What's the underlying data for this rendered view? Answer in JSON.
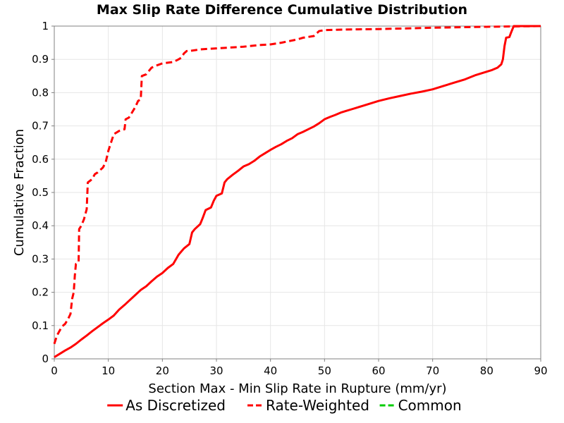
{
  "chart_data": {
    "type": "line",
    "title": "Max Slip Rate Difference Cumulative Distribution",
    "xlabel": "Section Max - Min Slip Rate in Rupture (mm/yr)",
    "ylabel": "Cumulative Fraction",
    "xlim": [
      0,
      90
    ],
    "ylim": [
      0,
      1
    ],
    "x_ticks": [
      0,
      10,
      20,
      30,
      40,
      50,
      60,
      70,
      80,
      90
    ],
    "y_ticks": [
      0,
      0.1,
      0.2,
      0.3,
      0.4,
      0.5,
      0.6,
      0.7,
      0.8,
      0.9,
      1
    ],
    "grid": true,
    "legend_position": "bottom",
    "series": [
      {
        "name": "As Discretized",
        "color": "#ff0000",
        "style": "solid",
        "points": [
          [
            0,
            0.005
          ],
          [
            1,
            0.015
          ],
          [
            2,
            0.025
          ],
          [
            3,
            0.034
          ],
          [
            4,
            0.045
          ],
          [
            5,
            0.058
          ],
          [
            6,
            0.07
          ],
          [
            7,
            0.083
          ],
          [
            8,
            0.095
          ],
          [
            9,
            0.107
          ],
          [
            10,
            0.118
          ],
          [
            11,
            0.13
          ],
          [
            12,
            0.148
          ],
          [
            13,
            0.162
          ],
          [
            14,
            0.177
          ],
          [
            15,
            0.192
          ],
          [
            16,
            0.207
          ],
          [
            17,
            0.218
          ],
          [
            18,
            0.233
          ],
          [
            19,
            0.247
          ],
          [
            20,
            0.258
          ],
          [
            21,
            0.273
          ],
          [
            22,
            0.285
          ],
          [
            23,
            0.313
          ],
          [
            24,
            0.332
          ],
          [
            25,
            0.345
          ],
          [
            25.5,
            0.38
          ],
          [
            26,
            0.39
          ],
          [
            27,
            0.405
          ],
          [
            27.5,
            0.425
          ],
          [
            28,
            0.447
          ],
          [
            29,
            0.455
          ],
          [
            29.5,
            0.475
          ],
          [
            30,
            0.49
          ],
          [
            31,
            0.497
          ],
          [
            31.5,
            0.53
          ],
          [
            32,
            0.54
          ],
          [
            33,
            0.553
          ],
          [
            34,
            0.565
          ],
          [
            35,
            0.578
          ],
          [
            36,
            0.585
          ],
          [
            37,
            0.595
          ],
          [
            38,
            0.608
          ],
          [
            39,
            0.618
          ],
          [
            40,
            0.628
          ],
          [
            41,
            0.637
          ],
          [
            42,
            0.645
          ],
          [
            43,
            0.655
          ],
          [
            44,
            0.663
          ],
          [
            45,
            0.675
          ],
          [
            46,
            0.682
          ],
          [
            47,
            0.69
          ],
          [
            48,
            0.698
          ],
          [
            49,
            0.708
          ],
          [
            50,
            0.72
          ],
          [
            51,
            0.727
          ],
          [
            52,
            0.733
          ],
          [
            53,
            0.74
          ],
          [
            54,
            0.745
          ],
          [
            55,
            0.75
          ],
          [
            56,
            0.755
          ],
          [
            57,
            0.76
          ],
          [
            58,
            0.765
          ],
          [
            59,
            0.77
          ],
          [
            60,
            0.775
          ],
          [
            62,
            0.783
          ],
          [
            64,
            0.79
          ],
          [
            66,
            0.797
          ],
          [
            68,
            0.803
          ],
          [
            70,
            0.81
          ],
          [
            72,
            0.82
          ],
          [
            74,
            0.83
          ],
          [
            76,
            0.84
          ],
          [
            78,
            0.853
          ],
          [
            80,
            0.863
          ],
          [
            81,
            0.868
          ],
          [
            82,
            0.875
          ],
          [
            82.7,
            0.885
          ],
          [
            83,
            0.9
          ],
          [
            83.3,
            0.94
          ],
          [
            83.6,
            0.965
          ],
          [
            84.2,
            0.967
          ],
          [
            84.5,
            0.98
          ],
          [
            85,
            1
          ],
          [
            90,
            1
          ]
        ]
      },
      {
        "name": "Rate-Weighted",
        "color": "#ff0000",
        "style": "dashed",
        "points": [
          [
            0,
            0.045
          ],
          [
            0.5,
            0.07
          ],
          [
            1,
            0.085
          ],
          [
            1.5,
            0.098
          ],
          [
            2,
            0.105
          ],
          [
            2.5,
            0.118
          ],
          [
            3,
            0.135
          ],
          [
            3.3,
            0.18
          ],
          [
            3.6,
            0.2
          ],
          [
            3.8,
            0.25
          ],
          [
            4,
            0.285
          ],
          [
            4.5,
            0.29
          ],
          [
            4.6,
            0.39
          ],
          [
            5,
            0.4
          ],
          [
            5.5,
            0.42
          ],
          [
            6,
            0.45
          ],
          [
            6.2,
            0.53
          ],
          [
            7,
            0.54
          ],
          [
            7.5,
            0.555
          ],
          [
            8,
            0.56
          ],
          [
            9,
            0.575
          ],
          [
            9.5,
            0.59
          ],
          [
            10,
            0.625
          ],
          [
            10.5,
            0.65
          ],
          [
            11,
            0.675
          ],
          [
            12,
            0.685
          ],
          [
            13,
            0.69
          ],
          [
            13.2,
            0.72
          ],
          [
            13.8,
            0.725
          ],
          [
            14,
            0.73
          ],
          [
            15,
            0.757
          ],
          [
            15.5,
            0.775
          ],
          [
            16,
            0.78
          ],
          [
            16.2,
            0.85
          ],
          [
            17,
            0.855
          ],
          [
            17.5,
            0.865
          ],
          [
            18,
            0.875
          ],
          [
            19,
            0.882
          ],
          [
            20,
            0.888
          ],
          [
            22,
            0.892
          ],
          [
            23,
            0.9
          ],
          [
            23.5,
            0.905
          ],
          [
            24,
            0.918
          ],
          [
            24.5,
            0.925
          ],
          [
            25,
            0.925
          ],
          [
            27,
            0.93
          ],
          [
            30,
            0.933
          ],
          [
            35,
            0.938
          ],
          [
            38,
            0.943
          ],
          [
            40,
            0.945
          ],
          [
            42,
            0.95
          ],
          [
            45,
            0.96
          ],
          [
            46,
            0.965
          ],
          [
            48,
            0.97
          ],
          [
            49,
            0.985
          ],
          [
            50,
            0.988
          ],
          [
            55,
            0.99
          ],
          [
            60,
            0.991
          ],
          [
            70,
            0.995
          ],
          [
            80,
            0.998
          ],
          [
            90,
            1
          ]
        ]
      },
      {
        "name": "Common",
        "color": "#00cc00",
        "style": "dashed",
        "points": []
      }
    ]
  }
}
